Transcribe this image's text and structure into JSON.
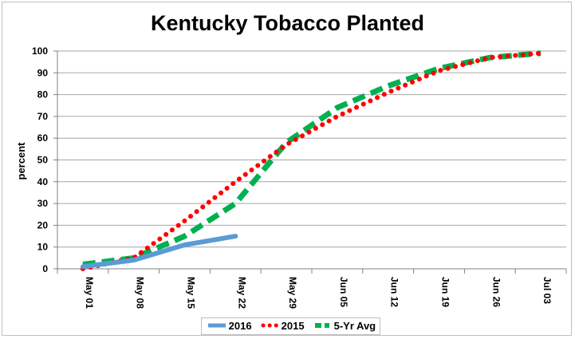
{
  "chart_data": {
    "type": "line",
    "title": "Kentucky Tobacco Planted",
    "xlabel": "",
    "ylabel": "percent",
    "ylim": [
      0,
      100
    ],
    "yticks": [
      0,
      10,
      20,
      30,
      40,
      50,
      60,
      70,
      80,
      90,
      100
    ],
    "grid": true,
    "legend": "bottom",
    "categories": [
      "May 01",
      "May 08",
      "May 15",
      "May 22",
      "May 29",
      "Jun 05",
      "Jun 12",
      "Jun 19",
      "Jun 26",
      "Jul 03"
    ],
    "series": [
      {
        "name": "2016",
        "color": "#5b9bd5",
        "style": "solid",
        "points": [
          [
            "May 01",
            1
          ],
          [
            "May 08",
            4
          ],
          [
            "May 15",
            11
          ],
          [
            "May 22",
            15
          ]
        ]
      },
      {
        "name": "2015",
        "color": "#ff0000",
        "style": "dotted",
        "points": [
          [
            "May 01",
            0
          ],
          [
            "May 08",
            5
          ],
          [
            "May 15",
            22
          ],
          [
            "May 22",
            40
          ],
          [
            "May 29",
            57
          ],
          [
            "Jun 05",
            70
          ],
          [
            "Jun 12",
            81
          ],
          [
            "Jun 19",
            91
          ],
          [
            "Jun 26",
            97
          ],
          [
            "Jul 03",
            99
          ]
        ]
      },
      {
        "name": "5-Yr Avg",
        "color": "#00b050",
        "style": "dashed",
        "points": [
          [
            "May 01",
            2
          ],
          [
            "May 08",
            5
          ],
          [
            "May 15",
            15
          ],
          [
            "May 22",
            30
          ],
          [
            "May 29",
            58
          ],
          [
            "Jun 05",
            74
          ],
          [
            "Jun 12",
            84
          ],
          [
            "Jun 19",
            92
          ],
          [
            "Jun 26",
            97
          ],
          [
            "Jul 03",
            99
          ]
        ]
      }
    ]
  }
}
